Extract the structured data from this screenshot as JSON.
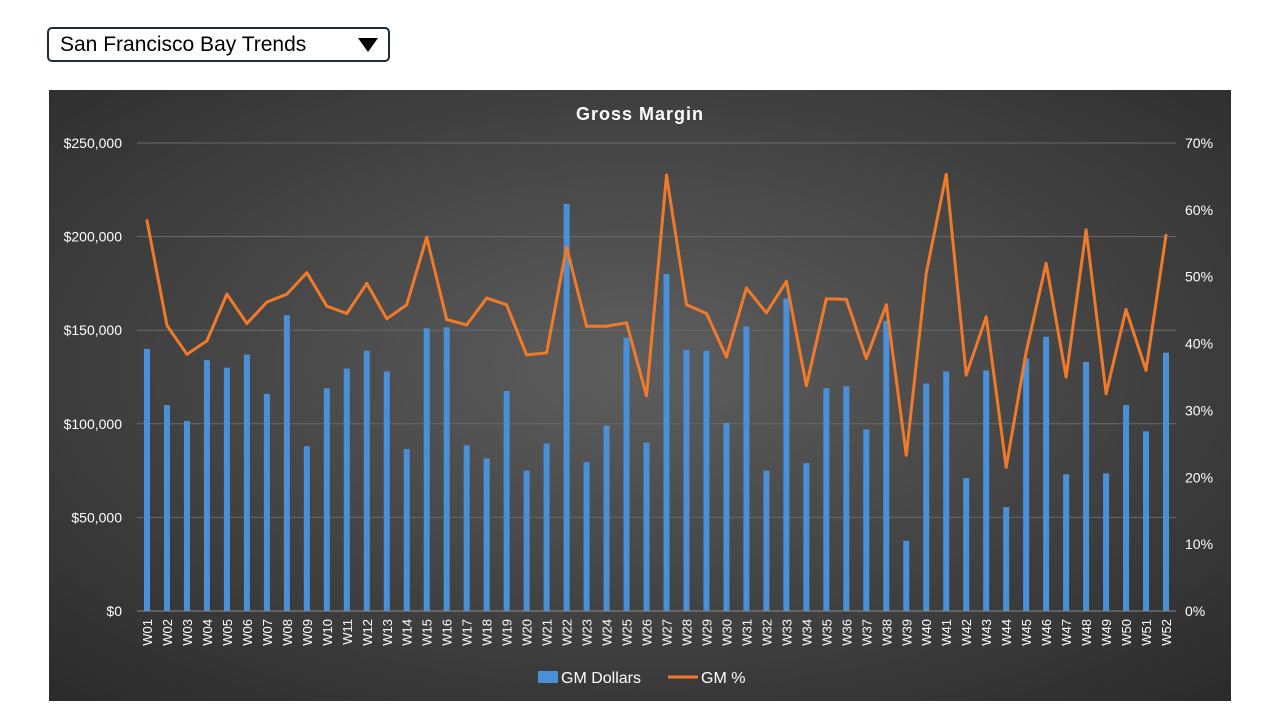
{
  "dropdown": {
    "selected": "San Francisco Bay Trends",
    "icon": "triangle-down-icon"
  },
  "chart_data": {
    "type": "bar",
    "title": "Gross Margin",
    "xlabel": "",
    "ylabel": "",
    "y2label": "",
    "ylim": [
      0,
      250000
    ],
    "y2lim": [
      0,
      0.7
    ],
    "y_ticks": [
      "$0",
      "$50,000",
      "$100,000",
      "$150,000",
      "$200,000",
      "$250,000"
    ],
    "y2_ticks": [
      "0%",
      "10%",
      "20%",
      "30%",
      "40%",
      "50%",
      "60%",
      "70%"
    ],
    "legend_position": "bottom",
    "grid": true,
    "categories": [
      "W01",
      "W02",
      "W03",
      "W04",
      "W05",
      "W06",
      "W07",
      "W08",
      "W09",
      "W10",
      "W11",
      "W12",
      "W13",
      "W14",
      "W15",
      "W16",
      "W17",
      "W18",
      "W19",
      "W20",
      "W21",
      "W22",
      "W23",
      "W24",
      "W25",
      "W26",
      "W27",
      "W28",
      "W29",
      "W30",
      "W31",
      "W32",
      "W33",
      "W34",
      "W35",
      "W36",
      "W37",
      "W38",
      "W39",
      "W40",
      "W41",
      "W42",
      "W43",
      "W44",
      "W45",
      "W46",
      "W47",
      "W48",
      "W49",
      "W50",
      "W51",
      "W52"
    ],
    "series": [
      {
        "name": "GM Dollars",
        "kind": "bar",
        "axis": "left",
        "color": "#4a90d9",
        "values": [
          140000,
          110000,
          101500,
          134000,
          130000,
          137000,
          116000,
          158000,
          88000,
          119000,
          129500,
          139000,
          128000,
          86500,
          151000,
          151500,
          88500,
          81500,
          117500,
          75000,
          89500,
          217500,
          79500,
          99000,
          146000,
          90000,
          180000,
          139500,
          139000,
          100500,
          152000,
          75000,
          167000,
          79000,
          119000,
          120000,
          97000,
          155000,
          37500,
          121500,
          128000,
          71000,
          128500,
          55500,
          135000,
          146500,
          73000,
          133000,
          73500,
          110000,
          96000,
          138000
        ]
      },
      {
        "name": "GM %",
        "kind": "line",
        "axis": "right",
        "color": "#f07a2a",
        "values": [
          0.584,
          0.427,
          0.384,
          0.404,
          0.474,
          0.43,
          0.462,
          0.474,
          0.506,
          0.456,
          0.445,
          0.49,
          0.437,
          0.458,
          0.559,
          0.436,
          0.428,
          0.468,
          0.458,
          0.383,
          0.386,
          0.544,
          0.426,
          0.426,
          0.431,
          0.322,
          0.652,
          0.458,
          0.445,
          0.38,
          0.483,
          0.446,
          0.493,
          0.337,
          0.467,
          0.466,
          0.378,
          0.458,
          0.233,
          0.505,
          0.653,
          0.353,
          0.44,
          0.215,
          0.387,
          0.52,
          0.35,
          0.57,
          0.325,
          0.451,
          0.36,
          0.562
        ]
      }
    ]
  }
}
